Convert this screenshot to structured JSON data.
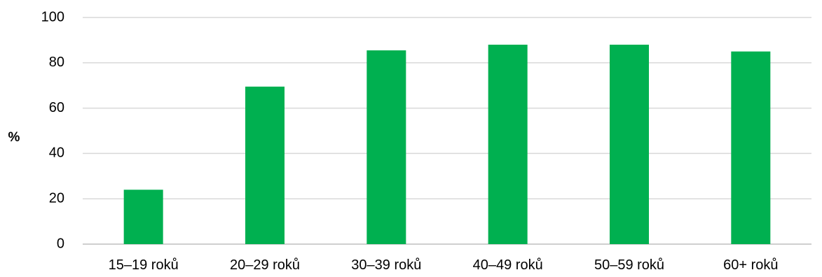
{
  "chart_data": {
    "type": "bar",
    "title": "",
    "xlabel": "",
    "ylabel": "%",
    "categories": [
      "15–19 roků",
      "20–29 roků",
      "30–39 roků",
      "40–49 roků",
      "50–59 roků",
      "60+ roků"
    ],
    "values": [
      24,
      69.5,
      85.5,
      88,
      88,
      85
    ],
    "ylim": [
      0,
      100
    ],
    "yticks": [
      "0",
      "20",
      "40",
      "60",
      "80",
      "100"
    ],
    "grid": true,
    "legend": "none",
    "bar_color": "#00b050"
  }
}
